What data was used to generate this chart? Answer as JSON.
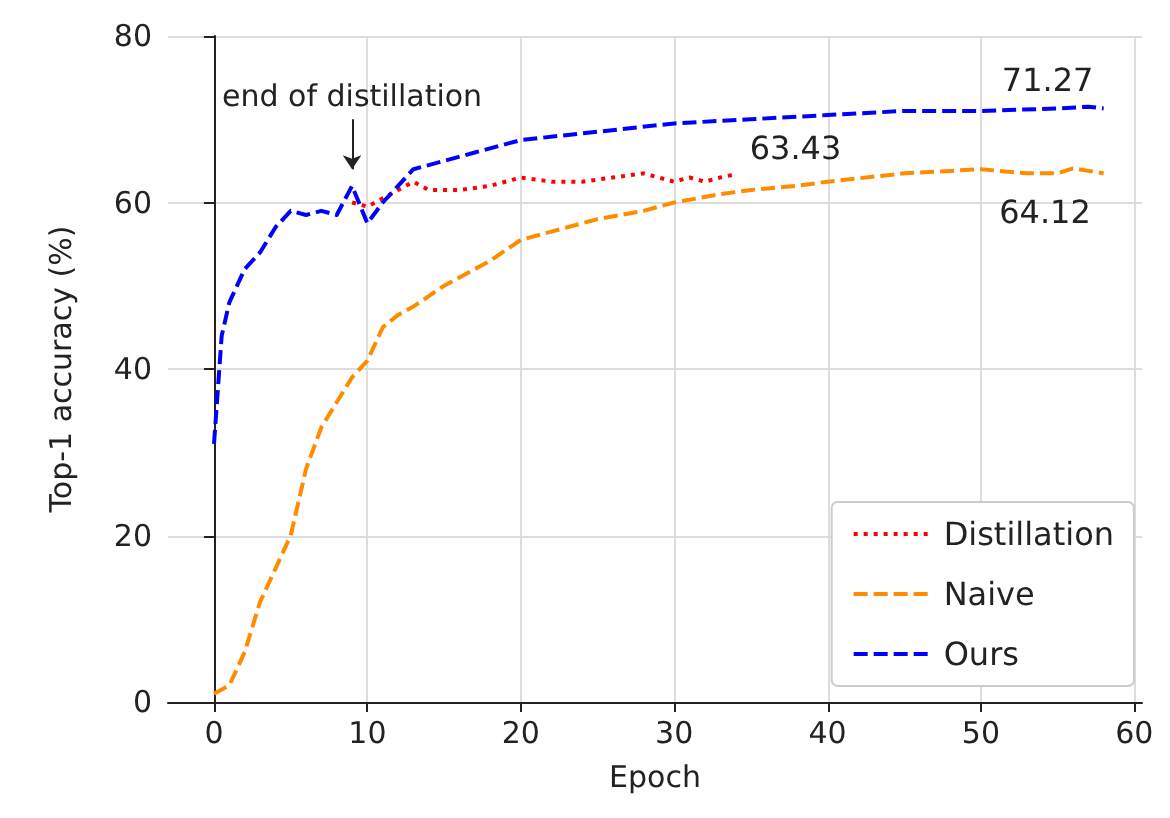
{
  "chart_data": {
    "type": "line",
    "xlabel": "Epoch",
    "ylabel": "Top-1 accuracy (%)",
    "xlim": [
      -3,
      60.5
    ],
    "xticks": [
      0,
      10,
      20,
      30,
      40,
      50,
      60
    ],
    "ylim": [
      0,
      80
    ],
    "yticks": [
      0,
      20,
      40,
      60,
      80
    ],
    "grid": true,
    "legend": "bottom right",
    "marker": "none",
    "series": [
      {
        "name": "Distillation",
        "color": "#ff0000",
        "line_style": "dotted",
        "x": [
          9,
          10,
          11,
          12,
          13,
          14,
          15,
          16,
          18,
          20,
          22,
          24,
          26,
          28,
          29,
          30,
          31,
          32,
          33,
          34
        ],
        "values": [
          60,
          59.5,
          60.5,
          61.5,
          62.5,
          61.5,
          61.5,
          61.5,
          62,
          63,
          62.5,
          62.5,
          63,
          63.5,
          63,
          62.5,
          63,
          62.5,
          63,
          63.4
        ]
      },
      {
        "name": "Naive",
        "color": "#ff8c00",
        "line_style": "dashed",
        "x": [
          0,
          1,
          2,
          3,
          4,
          5,
          6,
          7,
          8,
          9,
          10,
          11,
          12,
          13,
          15,
          18,
          20,
          22,
          25,
          28,
          30,
          33,
          35,
          38,
          40,
          45,
          50,
          53,
          55,
          56,
          57,
          58
        ],
        "values": [
          1,
          2,
          6,
          12,
          16,
          20,
          28,
          33,
          36,
          39,
          41,
          45,
          46.5,
          47.5,
          50,
          53,
          55.5,
          56.5,
          58,
          59,
          60,
          61,
          61.5,
          62,
          62.5,
          63.5,
          64,
          63.5,
          63.5,
          64.1,
          63.8,
          63.5
        ]
      },
      {
        "name": "Ours",
        "color": "#0000ff",
        "line_style": "dashed",
        "x": [
          0,
          0.5,
          1,
          2,
          3,
          4,
          5,
          6,
          7,
          8,
          9,
          10,
          11,
          12,
          13,
          15,
          17,
          20,
          25,
          30,
          35,
          40,
          45,
          50,
          55,
          57,
          58
        ],
        "values": [
          31,
          44,
          48,
          52,
          54,
          57,
          59,
          58.5,
          59,
          58.5,
          62,
          57.5,
          60,
          62,
          64,
          65,
          66,
          67.5,
          68.5,
          69.5,
          70,
          70.5,
          71,
          71,
          71.3,
          71.5,
          71.3
        ]
      }
    ],
    "annotations": [
      {
        "text": "end of distillation",
        "x": 9,
        "y": 62
      },
      {
        "text": "63.43",
        "x": 34,
        "y": 63.4
      },
      {
        "text": "71.27",
        "x": 58,
        "y": 71.3
      },
      {
        "text": "64.12",
        "x": 56,
        "y": 64.1
      }
    ]
  }
}
